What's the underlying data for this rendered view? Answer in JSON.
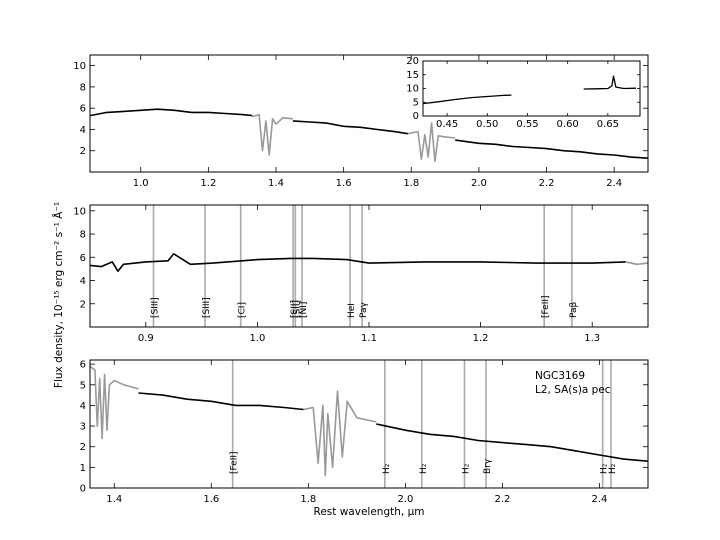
{
  "figure": {
    "ylabel": "Flux density, 10⁻¹⁵ erg cm⁻² s⁻¹ Å⁻¹",
    "xlabel": "Rest wavelength, μm",
    "object_name": "NGC3169",
    "classification": "L2,  SA(s)a pec"
  },
  "colors": {
    "spectrum": "#000000",
    "telluric": "#999999",
    "line_marker": "#aaaaaa",
    "frame": "#000000"
  },
  "chart_data": [
    {
      "id": "panel1",
      "type": "line",
      "xlim": [
        0.85,
        2.5
      ],
      "ylim": [
        0,
        11
      ],
      "xticks": [
        1.0,
        1.2,
        1.4,
        1.6,
        1.8,
        2.0,
        2.2,
        2.4
      ],
      "xticklabels": [
        "1.0",
        "1.2",
        "1.4",
        "1.6",
        "1.8",
        "2.0",
        "2.2",
        "2.4"
      ],
      "yticks": [
        2,
        4,
        6,
        8,
        10
      ],
      "yticklabels": [
        "2",
        "4",
        "6",
        "8",
        "10"
      ],
      "series": [
        {
          "style": "spectrum",
          "x": [
            0.85,
            0.9,
            0.95,
            1.0,
            1.05,
            1.1,
            1.15,
            1.2,
            1.25,
            1.3,
            1.33
          ],
          "y": [
            5.3,
            5.6,
            5.7,
            5.8,
            5.9,
            5.8,
            5.6,
            5.6,
            5.5,
            5.4,
            5.3
          ]
        },
        {
          "style": "telluric",
          "x": [
            1.33,
            1.35,
            1.36,
            1.37,
            1.38,
            1.39,
            1.4,
            1.42,
            1.45
          ],
          "y": [
            5.2,
            5.4,
            2.0,
            4.8,
            1.6,
            5.0,
            4.5,
            5.1,
            5.0
          ]
        },
        {
          "style": "spectrum",
          "x": [
            1.45,
            1.5,
            1.55,
            1.6,
            1.65,
            1.7,
            1.75,
            1.79
          ],
          "y": [
            4.8,
            4.7,
            4.6,
            4.3,
            4.2,
            4.0,
            3.8,
            3.6
          ]
        },
        {
          "style": "telluric",
          "x": [
            1.79,
            1.82,
            1.83,
            1.84,
            1.85,
            1.86,
            1.87,
            1.88,
            1.9,
            1.93
          ],
          "y": [
            3.6,
            3.8,
            1.2,
            3.5,
            1.4,
            4.6,
            1.0,
            3.4,
            3.3,
            3.2
          ]
        },
        {
          "style": "spectrum",
          "x": [
            1.93,
            2.0,
            2.05,
            2.1,
            2.15,
            2.2,
            2.25,
            2.3,
            2.35,
            2.4,
            2.45,
            2.5
          ],
          "y": [
            3.0,
            2.7,
            2.6,
            2.4,
            2.3,
            2.2,
            2.0,
            1.9,
            1.7,
            1.6,
            1.4,
            1.3
          ]
        }
      ]
    },
    {
      "id": "inset",
      "type": "line",
      "xlim": [
        0.42,
        0.69
      ],
      "ylim": [
        0,
        20
      ],
      "xticks": [
        0.45,
        0.5,
        0.55,
        0.6,
        0.65
      ],
      "xticklabels": [
        "0.45",
        "0.50",
        "0.55",
        "0.60",
        "0.65"
      ],
      "yticks": [
        0,
        5,
        10,
        15,
        20
      ],
      "yticklabels": [
        "0",
        "5",
        "10",
        "15",
        "20"
      ],
      "series": [
        {
          "style": "spectrum",
          "x": [
            0.42,
            0.44,
            0.46,
            0.48,
            0.5,
            0.52,
            0.53
          ],
          "y": [
            4.5,
            5.2,
            6.0,
            6.7,
            7.1,
            7.5,
            7.6
          ]
        },
        {
          "style": "spectrum",
          "x": [
            0.62,
            0.635,
            0.65,
            0.655,
            0.657,
            0.66,
            0.67,
            0.685
          ],
          "y": [
            9.8,
            9.9,
            10.0,
            11.0,
            14.5,
            10.5,
            10.0,
            10.1
          ]
        }
      ]
    },
    {
      "id": "panel2",
      "type": "line",
      "xlim": [
        0.85,
        1.35
      ],
      "ylim": [
        0,
        10.5
      ],
      "xticks": [
        0.9,
        1.0,
        1.1,
        1.2,
        1.3
      ],
      "xticklabels": [
        "0.9",
        "1.0",
        "1.1",
        "1.2",
        "1.3"
      ],
      "yticks": [
        2,
        4,
        6,
        8,
        10
      ],
      "yticklabels": [
        "2",
        "4",
        "6",
        "8",
        "10"
      ],
      "series": [
        {
          "style": "spectrum",
          "x": [
            0.85,
            0.86,
            0.87,
            0.875,
            0.88,
            0.9,
            0.92,
            0.925,
            0.94,
            0.96,
            1.0,
            1.03,
            1.05,
            1.08,
            1.1,
            1.15,
            1.2,
            1.25,
            1.3,
            1.33
          ],
          "y": [
            5.3,
            5.2,
            5.6,
            4.8,
            5.4,
            5.6,
            5.7,
            6.3,
            5.4,
            5.5,
            5.8,
            5.9,
            5.9,
            5.8,
            5.5,
            5.6,
            5.6,
            5.5,
            5.5,
            5.6
          ]
        },
        {
          "style": "telluric",
          "x": [
            1.33,
            1.34,
            1.35
          ],
          "y": [
            5.6,
            5.4,
            5.5
          ]
        }
      ],
      "lines": [
        {
          "x": 0.9069,
          "label": "[SIII]"
        },
        {
          "x": 0.9531,
          "label": "[SIII]"
        },
        {
          "x": 0.985,
          "label": "[CI]"
        },
        {
          "x": 1.032,
          "label": "[SII]"
        },
        {
          "x": 1.034,
          "label": "[SII]"
        },
        {
          "x": 1.04,
          "label": "[NI]"
        },
        {
          "x": 1.083,
          "label": "HeI"
        },
        {
          "x": 1.0938,
          "label": "Paγ"
        },
        {
          "x": 1.257,
          "label": "[FeII]"
        },
        {
          "x": 1.2818,
          "label": "Paβ"
        }
      ]
    },
    {
      "id": "panel3",
      "type": "line",
      "xlim": [
        1.35,
        2.5
      ],
      "ylim": [
        0,
        6.2
      ],
      "xticks": [
        1.4,
        1.6,
        1.8,
        2.0,
        2.2,
        2.4
      ],
      "xticklabels": [
        "1.4",
        "1.6",
        "1.8",
        "2.0",
        "2.2",
        "2.4"
      ],
      "yticks": [
        0,
        1,
        2,
        3,
        4,
        5,
        6
      ],
      "yticklabels": [
        "0",
        "1",
        "2",
        "3",
        "4",
        "5",
        "6"
      ],
      "series": [
        {
          "style": "telluric",
          "x": [
            1.35,
            1.36,
            1.365,
            1.37,
            1.375,
            1.38,
            1.385,
            1.39,
            1.4,
            1.42,
            1.45
          ],
          "y": [
            5.9,
            5.7,
            3.0,
            5.3,
            2.4,
            5.5,
            2.8,
            5.0,
            5.2,
            5.0,
            4.8
          ]
        },
        {
          "style": "spectrum",
          "x": [
            1.45,
            1.5,
            1.55,
            1.6,
            1.65,
            1.7,
            1.75,
            1.79
          ],
          "y": [
            4.6,
            4.5,
            4.3,
            4.2,
            4.0,
            4.0,
            3.9,
            3.8
          ]
        },
        {
          "style": "telluric",
          "x": [
            1.79,
            1.81,
            1.82,
            1.83,
            1.835,
            1.84,
            1.85,
            1.86,
            1.87,
            1.88,
            1.9,
            1.94
          ],
          "y": [
            3.8,
            3.9,
            1.2,
            4.0,
            0.6,
            3.6,
            1.0,
            4.7,
            1.5,
            4.2,
            3.4,
            3.2
          ]
        },
        {
          "style": "spectrum",
          "x": [
            1.94,
            2.0,
            2.05,
            2.1,
            2.15,
            2.2,
            2.25,
            2.3,
            2.35,
            2.4,
            2.45,
            2.5
          ],
          "y": [
            3.1,
            2.8,
            2.6,
            2.5,
            2.3,
            2.2,
            2.1,
            2.0,
            1.8,
            1.6,
            1.4,
            1.3
          ]
        }
      ],
      "lines": [
        {
          "x": 1.644,
          "label": "[FeII]"
        },
        {
          "x": 1.9576,
          "label": "H₂"
        },
        {
          "x": 2.0338,
          "label": "H₂"
        },
        {
          "x": 2.1218,
          "label": "H₂"
        },
        {
          "x": 2.1661,
          "label": "Brγ"
        },
        {
          "x": 2.4066,
          "label": "H₂"
        },
        {
          "x": 2.4237,
          "label": "H₂"
        }
      ]
    }
  ]
}
